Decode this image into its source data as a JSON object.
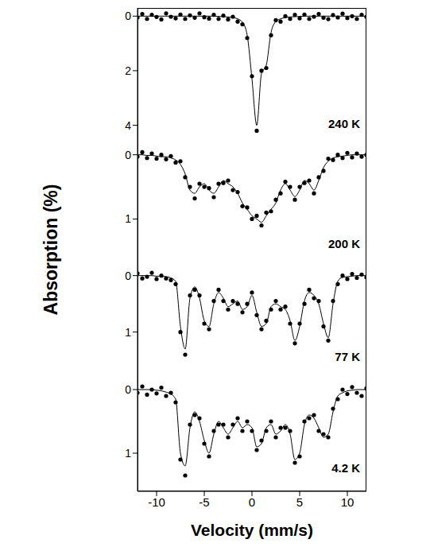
{
  "chart_data": [
    {
      "type": "scatter",
      "annotation": "240 K",
      "y_label": "Absorption (%)",
      "tick_labels": "y",
      "xlim": [
        -12,
        12
      ],
      "xticks": [
        -10,
        -5,
        0,
        5,
        10
      ],
      "ylim": [
        4.8,
        -0.3
      ],
      "yticks": [
        0,
        2,
        4
      ],
      "x": [
        -12,
        -11.5,
        -11,
        -10.5,
        -10,
        -9.5,
        -9,
        -8.5,
        -8,
        -7.5,
        -7,
        -6.5,
        -6,
        -5.5,
        -5,
        -4.5,
        -4,
        -3.5,
        -3,
        -2.5,
        -2,
        -1.5,
        -1,
        -0.5,
        0,
        0.5,
        1,
        1.5,
        2,
        2.5,
        3,
        3.5,
        4,
        4.5,
        5,
        5.5,
        6,
        6.5,
        7,
        7.5,
        8,
        8.5,
        9,
        9.5,
        10,
        10.5,
        11,
        11.5,
        12
      ],
      "series": [
        {
          "type": "scatter",
          "marker": "circle",
          "color": "#000000",
          "values": [
            0.05,
            -0.08,
            0.1,
            -0.05,
            0.03,
            0.12,
            -0.1,
            0.02,
            0.08,
            -0.06,
            0.1,
            -0.03,
            0.06,
            -0.1,
            0.04,
            0.09,
            -0.05,
            0.1,
            -0.02,
            0.12,
            0.02,
            0.2,
            0.3,
            0.8,
            2.2,
            4.2,
            2.0,
            1.9,
            0.7,
            0.15,
            0.2,
            0.0,
            0.1,
            -0.05,
            0.08,
            -0.06,
            0.1,
            0.02,
            -0.08,
            0.06,
            0.11,
            -0.04,
            0.05,
            -0.09,
            0.07,
            0.0,
            0.1,
            -0.05,
            0.03
          ]
        },
        {
          "type": "line",
          "line_style": "solid",
          "color": "#000000",
          "values": [
            0,
            0,
            0,
            0,
            0,
            0,
            0,
            0,
            0,
            0,
            0,
            0,
            0,
            0,
            0,
            0,
            0,
            0.01,
            0.02,
            0.03,
            0.05,
            0.1,
            0.22,
            0.7,
            2.3,
            4.0,
            2.1,
            1.8,
            0.6,
            0.2,
            0.1,
            0.05,
            0.03,
            0.02,
            0.01,
            0,
            0,
            0,
            0,
            0,
            0,
            0,
            0,
            0,
            0,
            0,
            0,
            0,
            0
          ]
        }
      ]
    },
    {
      "type": "scatter",
      "annotation": "200 K",
      "tick_labels": "y",
      "xlim": [
        -12,
        12
      ],
      "xticks": [
        -10,
        -5,
        0,
        5,
        10
      ],
      "ylim": [
        1.75,
        -0.12
      ],
      "yticks": [
        0,
        1
      ],
      "x": [
        -12,
        -11.5,
        -11,
        -10.5,
        -10,
        -9.5,
        -9,
        -8.5,
        -8,
        -7.5,
        -7,
        -6.5,
        -6,
        -5.5,
        -5,
        -4.5,
        -4,
        -3.5,
        -3,
        -2.5,
        -2,
        -1.5,
        -1,
        -0.5,
        0,
        0.5,
        1,
        1.5,
        2,
        2.5,
        3,
        3.5,
        4,
        4.5,
        5,
        5.5,
        6,
        6.5,
        7,
        7.5,
        8,
        8.5,
        9,
        9.5,
        10,
        10.5,
        11,
        11.5,
        12
      ],
      "series": [
        {
          "type": "scatter",
          "marker": "circle",
          "color": "#000000",
          "values": [
            0.03,
            -0.04,
            0.05,
            -0.02,
            0.06,
            0.0,
            0.07,
            0.02,
            0.12,
            0.1,
            0.35,
            0.5,
            0.68,
            0.45,
            0.5,
            0.52,
            0.66,
            0.45,
            0.44,
            0.4,
            0.55,
            0.58,
            0.8,
            0.82,
            1.0,
            0.95,
            1.1,
            0.9,
            0.88,
            0.7,
            0.6,
            0.42,
            0.5,
            0.7,
            0.5,
            0.44,
            0.4,
            0.6,
            0.35,
            0.25,
            0.06,
            0.08,
            0.0,
            0.05,
            -0.03,
            0.04,
            -0.02,
            0.03,
            0.0
          ]
        },
        {
          "type": "line",
          "line_style": "solid",
          "color": "#000000",
          "values": [
            0,
            0,
            0.01,
            0.01,
            0.02,
            0.03,
            0.03,
            0.05,
            0.08,
            0.15,
            0.3,
            0.55,
            0.6,
            0.5,
            0.45,
            0.55,
            0.6,
            0.5,
            0.4,
            0.45,
            0.5,
            0.6,
            0.75,
            0.85,
            0.95,
            1.0,
            1.05,
            0.95,
            0.85,
            0.75,
            0.55,
            0.45,
            0.55,
            0.65,
            0.55,
            0.4,
            0.45,
            0.55,
            0.4,
            0.2,
            0.1,
            0.05,
            0.03,
            0.02,
            0.01,
            0,
            0,
            0,
            0
          ]
        }
      ]
    },
    {
      "type": "scatter",
      "annotation": "77 K",
      "tick_labels": "y",
      "xlim": [
        -12,
        12
      ],
      "xticks": [
        -10,
        -5,
        0,
        5,
        10
      ],
      "ylim": [
        1.85,
        -0.15
      ],
      "yticks": [
        0,
        1
      ],
      "x": [
        -12,
        -11.5,
        -11,
        -10.5,
        -10,
        -9.5,
        -9,
        -8.5,
        -8,
        -7.5,
        -7,
        -6.5,
        -6,
        -5.5,
        -5,
        -4.5,
        -4,
        -3.5,
        -3,
        -2.5,
        -2,
        -1.5,
        -1,
        -0.5,
        0,
        0.5,
        1,
        1.5,
        2,
        2.5,
        3,
        3.5,
        4,
        4.5,
        5,
        5.5,
        6,
        6.5,
        7,
        7.5,
        8,
        8.5,
        9,
        9.5,
        10,
        10.5,
        11,
        11.5,
        12
      ],
      "series": [
        {
          "type": "scatter",
          "marker": "circle",
          "color": "#000000",
          "values": [
            -0.04,
            0.05,
            0.02,
            -0.05,
            0.06,
            0.0,
            0.05,
            0.08,
            0.15,
            1.0,
            1.4,
            0.35,
            0.25,
            0.35,
            0.85,
            0.95,
            0.45,
            0.25,
            0.45,
            0.6,
            0.45,
            0.5,
            0.65,
            0.5,
            0.3,
            0.7,
            0.95,
            0.8,
            0.6,
            0.45,
            0.6,
            0.55,
            0.85,
            1.2,
            0.85,
            0.5,
            0.25,
            0.4,
            0.45,
            0.9,
            1.15,
            0.45,
            0.15,
            0.0,
            0.06,
            -0.03,
            0.04,
            -0.02,
            0.03
          ]
        },
        {
          "type": "line",
          "line_style": "solid",
          "color": "#000000",
          "values": [
            0,
            0,
            0,
            0,
            0.01,
            0.01,
            0.02,
            0.04,
            0.1,
            0.9,
            1.3,
            0.4,
            0.2,
            0.4,
            0.8,
            0.9,
            0.5,
            0.3,
            0.4,
            0.55,
            0.5,
            0.45,
            0.6,
            0.55,
            0.35,
            0.65,
            0.9,
            0.85,
            0.55,
            0.5,
            0.55,
            0.6,
            0.8,
            1.15,
            0.9,
            0.45,
            0.3,
            0.35,
            0.5,
            0.85,
            1.1,
            0.5,
            0.1,
            0.03,
            0.02,
            0.01,
            0,
            0,
            0
          ]
        }
      ]
    },
    {
      "type": "scatter",
      "annotation": "4.2 K",
      "x_label": "Velocity (mm/s)",
      "xlim": [
        -12,
        12
      ],
      "xticks": [
        -10,
        -5,
        0,
        5,
        10
      ],
      "ylim": [
        1.6,
        -0.15
      ],
      "yticks": [
        0,
        1
      ],
      "x": [
        -12,
        -11.5,
        -11,
        -10.5,
        -10,
        -9.5,
        -9,
        -8.5,
        -8,
        -7.5,
        -7,
        -6.5,
        -6,
        -5.5,
        -5,
        -4.5,
        -4,
        -3.5,
        -3,
        -2.5,
        -2,
        -1.5,
        -1,
        -0.5,
        0,
        0.5,
        1,
        1.5,
        2,
        2.5,
        3,
        3.5,
        4,
        4.5,
        5,
        5.5,
        6,
        6.5,
        7,
        7.5,
        8,
        8.5,
        9,
        9.5,
        10,
        10.5,
        11,
        11.5,
        12
      ],
      "series": [
        {
          "type": "scatter",
          "marker": "circle",
          "color": "#000000",
          "values": [
            0.05,
            -0.05,
            0.08,
            0.0,
            0.06,
            -0.03,
            0.1,
            0.05,
            0.2,
            1.1,
            1.35,
            0.55,
            0.4,
            0.45,
            0.85,
            1.05,
            0.65,
            0.55,
            0.55,
            0.75,
            0.55,
            0.45,
            0.65,
            0.5,
            0.65,
            0.95,
            0.8,
            0.65,
            0.5,
            0.75,
            0.6,
            0.6,
            0.65,
            1.15,
            1.05,
            0.5,
            0.45,
            0.4,
            0.65,
            0.7,
            0.75,
            0.3,
            0.15,
            0.0,
            0.07,
            -0.04,
            0.05,
            0.1,
            -0.02
          ]
        },
        {
          "type": "line",
          "line_style": "solid",
          "color": "#000000",
          "values": [
            0,
            0,
            0,
            0,
            0.01,
            0.02,
            0.04,
            0.07,
            0.15,
            1.0,
            1.2,
            0.6,
            0.35,
            0.5,
            0.8,
            1.0,
            0.7,
            0.5,
            0.6,
            0.7,
            0.6,
            0.5,
            0.6,
            0.55,
            0.6,
            0.9,
            0.85,
            0.6,
            0.55,
            0.7,
            0.65,
            0.55,
            0.7,
            1.1,
            1.0,
            0.55,
            0.4,
            0.45,
            0.6,
            0.75,
            0.7,
            0.35,
            0.1,
            0.05,
            0.02,
            0.01,
            0,
            0,
            0
          ]
        }
      ]
    }
  ]
}
